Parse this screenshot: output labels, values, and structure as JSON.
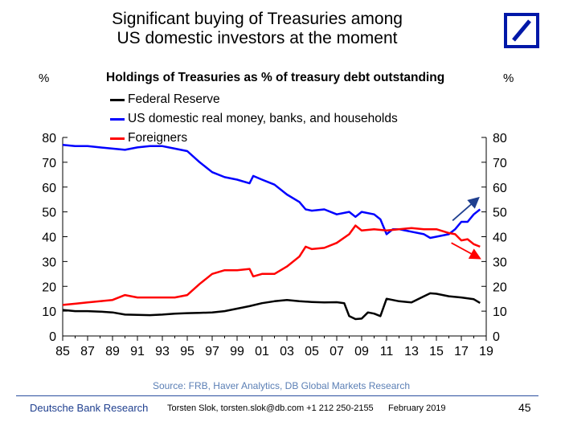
{
  "slide": {
    "title_line1": "Significant buying of Treasuries among",
    "title_line2": "US domestic investors at the moment",
    "logo_icon": "deutsche-bank-slash-icon",
    "logo_color": "#0018a8",
    "source": "Source: FRB, Haver Analytics,  DB Global Markets Research",
    "footer_org": "Deutsche Bank Research",
    "footer_author": "Torsten Slok, torsten.slok@db.com  +1 212 250-2155",
    "footer_date": "February 2019",
    "page_number": "45"
  },
  "chart_data": {
    "type": "line",
    "title": "Holdings of Treasuries as % of treasury debt outstanding",
    "ylabel_left": "%",
    "ylabel_right": "%",
    "ylim": [
      0,
      80
    ],
    "yticks": [
      0,
      10,
      20,
      30,
      40,
      50,
      60,
      70,
      80
    ],
    "xlim": [
      1985,
      2019
    ],
    "xticks": [
      1985,
      1987,
      1989,
      1991,
      1993,
      1995,
      1997,
      1999,
      2001,
      2003,
      2005,
      2007,
      2009,
      2011,
      2013,
      2015,
      2017,
      2019
    ],
    "xtick_labels": [
      "85",
      "87",
      "89",
      "91",
      "93",
      "95",
      "97",
      "99",
      "01",
      "03",
      "05",
      "07",
      "09",
      "11",
      "13",
      "15",
      "17",
      "19"
    ],
    "grid": false,
    "legend_position": "top-left",
    "series": [
      {
        "name": "Federal Reserve",
        "color": "#000000",
        "x": [
          1985,
          1986,
          1987,
          1988,
          1989,
          1990,
          1991,
          1992,
          1993,
          1994,
          1995,
          1996,
          1997,
          1998,
          1999,
          2000,
          2001,
          2002,
          2003,
          2004,
          2005,
          2006,
          2007,
          2007.6,
          2008,
          2008.5,
          2009,
          2009.5,
          2010,
          2010.5,
          2011,
          2012,
          2013,
          2014,
          2014.5,
          2015,
          2016,
          2017,
          2018,
          2018.5
        ],
        "y": [
          10.5,
          10,
          10,
          9.8,
          9.5,
          8.6,
          8.5,
          8.4,
          8.6,
          9,
          9.2,
          9.3,
          9.5,
          10,
          11,
          12,
          13.2,
          14,
          14.5,
          14,
          13.7,
          13.5,
          13.6,
          13.2,
          8,
          6.8,
          7,
          9.5,
          9,
          8,
          15,
          14,
          13.5,
          16,
          17.2,
          17,
          16,
          15.5,
          14.8,
          13.3
        ]
      },
      {
        "name": "US domestic real money, banks, and households",
        "color": "#0000ff",
        "x": [
          1985,
          1986,
          1987,
          1988,
          1989,
          1990,
          1991,
          1992,
          1993,
          1994,
          1995,
          1996,
          1997,
          1998,
          1999,
          2000,
          2000.3,
          2001,
          2002,
          2003,
          2004,
          2004.5,
          2005,
          2006,
          2007,
          2008,
          2008.5,
          2009,
          2010,
          2010.5,
          2011,
          2011.5,
          2012,
          2013,
          2014,
          2014.5,
          2015,
          2016,
          2016.5,
          2017,
          2017.5,
          2018,
          2018.5
        ],
        "y": [
          77,
          76.5,
          76.5,
          76,
          75.5,
          75,
          76,
          76.5,
          76.5,
          75.5,
          74.5,
          70,
          66,
          64,
          63,
          61.5,
          64.5,
          63,
          61,
          57,
          54,
          51,
          50.5,
          51,
          49,
          50,
          48,
          50,
          49,
          47,
          41,
          43,
          43,
          42,
          41,
          39.5,
          40,
          41,
          43,
          46,
          46,
          49,
          51
        ]
      },
      {
        "name": "Foreigners",
        "color": "#ff0000",
        "x": [
          1985,
          1986,
          1987,
          1988,
          1989,
          1990,
          1991,
          1992,
          1993,
          1994,
          1995,
          1996,
          1997,
          1998,
          1999,
          2000,
          2000.3,
          2001,
          2002,
          2003,
          2004,
          2004.5,
          2005,
          2006,
          2007,
          2008,
          2008.5,
          2009,
          2010,
          2011,
          2012,
          2013,
          2014,
          2015,
          2016,
          2016.5,
          2017,
          2017.5,
          2018,
          2018.5
        ],
        "y": [
          12.5,
          13,
          13.5,
          14,
          14.5,
          16.5,
          15.5,
          15.5,
          15.5,
          15.5,
          16.5,
          21,
          25,
          26.5,
          26.5,
          27,
          24,
          25,
          25,
          28,
          32,
          36,
          35,
          35.5,
          37.5,
          41,
          44.5,
          42.5,
          43,
          42.5,
          43,
          43.5,
          43,
          43,
          41.5,
          41,
          38.5,
          39,
          37,
          36
        ]
      }
    ],
    "annotations": [
      {
        "type": "arrow",
        "color": "#1f3f8f",
        "from": [
          2016.3,
          46.5
        ],
        "to": [
          2018.3,
          55.3
        ]
      },
      {
        "type": "arrow",
        "color": "#ff0000",
        "from": [
          2016.2,
          37.5
        ],
        "to": [
          2018.4,
          31.5
        ]
      }
    ]
  }
}
